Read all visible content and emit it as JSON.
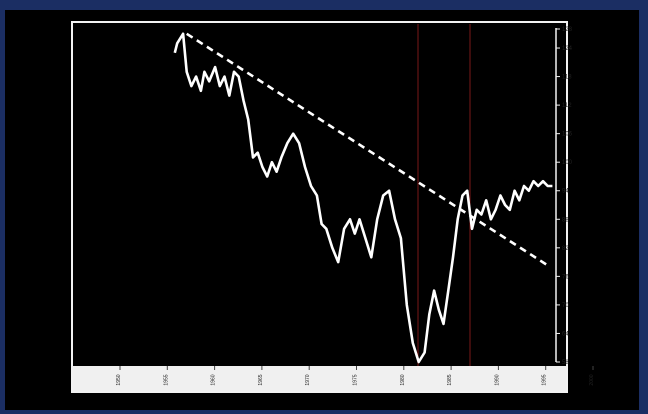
{
  "colors": {
    "frame_bg": "#1b2e63",
    "plot_bg": "#000000",
    "border": "#f2f2f2",
    "line": "#ffffff",
    "trendline": "#ffffff",
    "axis_strip": "#f0f0f0",
    "marker_line": "#7a1818"
  },
  "chart_data": {
    "type": "line",
    "title": "",
    "xlabel": "",
    "ylabel": "",
    "y_axis_side": "right",
    "ylim": [
      58,
      128
    ],
    "yticks": [
      58,
      64,
      70,
      76,
      82,
      88,
      94,
      100,
      106,
      112,
      118,
      124,
      128
    ],
    "xlim": [
      1950,
      1987
    ],
    "xticks": [
      "1950",
      "1955",
      "1960",
      "1965",
      "1970",
      "1975",
      "1980",
      "1985",
      "1990",
      "1995",
      "2000"
    ],
    "grid": false,
    "legend": "none",
    "series": [
      {
        "style": "solid",
        "x": [
          1954.8,
          1955.0,
          1955.5,
          1955.8,
          1956.2,
          1956.6,
          1957.0,
          1957.3,
          1957.7,
          1958.2,
          1958.6,
          1959.0,
          1959.4,
          1959.8,
          1960.2,
          1960.6,
          1961.0,
          1961.4,
          1961.8,
          1962.2,
          1962.6,
          1963.0,
          1963.4,
          1963.8,
          1964.3,
          1964.8,
          1965.3,
          1965.8,
          1966.3,
          1966.8,
          1967.2,
          1967.6,
          1968.1,
          1968.6,
          1969.1,
          1969.6,
          1970.0,
          1970.4,
          1970.9,
          1971.4,
          1971.9,
          1972.4,
          1972.9,
          1973.4,
          1973.9,
          1974.4,
          1974.9,
          1975.4,
          1975.9,
          1976.3,
          1976.7,
          1977.1,
          1977.5,
          1977.9,
          1978.3,
          1978.7,
          1979.1,
          1979.5,
          1979.9,
          1980.3,
          1980.7,
          1981.1,
          1981.5,
          1981.9,
          1982.3,
          1982.7,
          1983.1,
          1983.5,
          1983.9,
          1984.3,
          1984.7,
          1985.1,
          1985.5,
          1985.9,
          1986.3,
          1986.7
        ],
        "y": [
          123,
          125,
          127,
          119,
          116,
          118,
          115,
          119,
          117,
          120,
          116,
          118,
          114,
          119,
          118,
          113,
          109,
          101,
          102,
          99,
          97,
          100,
          98,
          101,
          104,
          106,
          104,
          99,
          95,
          93,
          87,
          86,
          82,
          79,
          86,
          88,
          85,
          88,
          84,
          80,
          88,
          93,
          94,
          88,
          84,
          70,
          62,
          58,
          60,
          68,
          73,
          69,
          66,
          73,
          80,
          88,
          93,
          94,
          86,
          90,
          89,
          92,
          88,
          90,
          93,
          91,
          90,
          94,
          92,
          95,
          94,
          96,
          95,
          96,
          95,
          95
        ]
      },
      {
        "style": "dashed",
        "x": [
          1955.8,
          1986.5
        ],
        "y": [
          127,
          78
        ]
      }
    ]
  }
}
